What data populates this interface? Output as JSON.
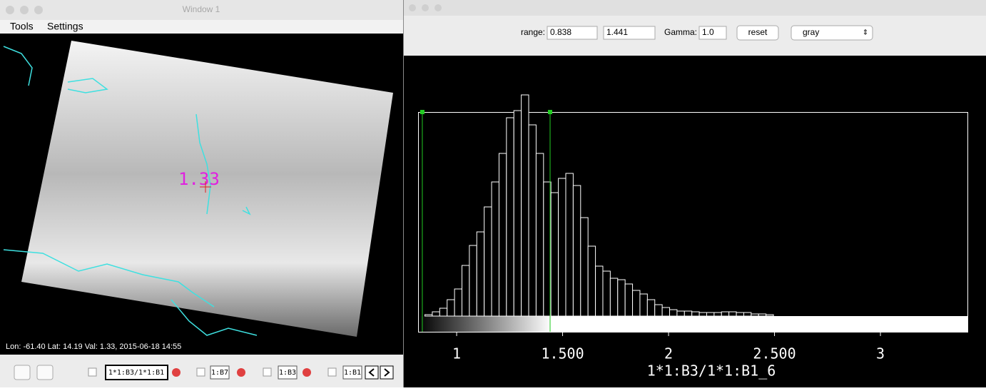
{
  "left_window": {
    "title": "Window 1",
    "menu": [
      "Tools",
      "Settings"
    ],
    "map_label": "1.33",
    "status": "Lon: -61.40 Lat: 14.19 Val: 1.33, 2015-06-18 14:55",
    "layers": [
      "1*1:B3/1*1:B1",
      "1:B7",
      "1:B3",
      "1:B1"
    ]
  },
  "right_window": {
    "range_label": "range:",
    "range": [
      0.838,
      1.441
    ],
    "gamma_label": "Gamma:",
    "gamma": "1.0",
    "reset": "reset",
    "colormap": "gray",
    "histogram": {
      "type": "histogram",
      "bins": [
        0.85,
        0.885,
        0.92,
        0.955,
        0.99,
        1.025,
        1.06,
        1.095,
        1.13,
        1.165,
        1.2,
        1.235,
        1.27,
        1.305,
        1.34,
        1.375,
        1.41,
        1.445,
        1.48,
        1.515,
        1.55,
        1.585,
        1.62,
        1.655,
        1.69,
        1.725,
        1.76,
        1.795,
        1.83,
        1.865,
        1.9,
        1.935,
        1.97,
        2.005,
        2.04,
        2.075,
        2.11,
        2.145,
        2.18,
        2.215,
        2.25,
        2.285,
        2.32,
        2.355,
        2.39,
        2.425,
        2.46,
        2.495
      ],
      "counts": [
        2,
        6,
        11,
        23,
        38,
        71,
        99,
        118,
        153,
        188,
        228,
        278,
        288,
        310,
        268,
        228,
        188,
        173,
        193,
        200,
        183,
        138,
        98,
        70,
        63,
        53,
        51,
        45,
        36,
        31,
        23,
        16,
        12,
        9,
        7,
        7,
        6,
        5,
        5,
        5,
        6,
        6,
        5,
        5,
        3,
        3,
        2
      ],
      "xlim": [
        0.818,
        3.414
      ],
      "ylim": [
        0,
        310
      ],
      "xticks": [
        1,
        {
          "value": 1.5,
          "label": "1.500"
        },
        2,
        {
          "value": 2.5,
          "label": "2.500"
        },
        3
      ],
      "xlabel": "1*1:B3/1*1:B1_6",
      "bar_color": "#ffffff",
      "marker_color": "#22cc22"
    }
  }
}
